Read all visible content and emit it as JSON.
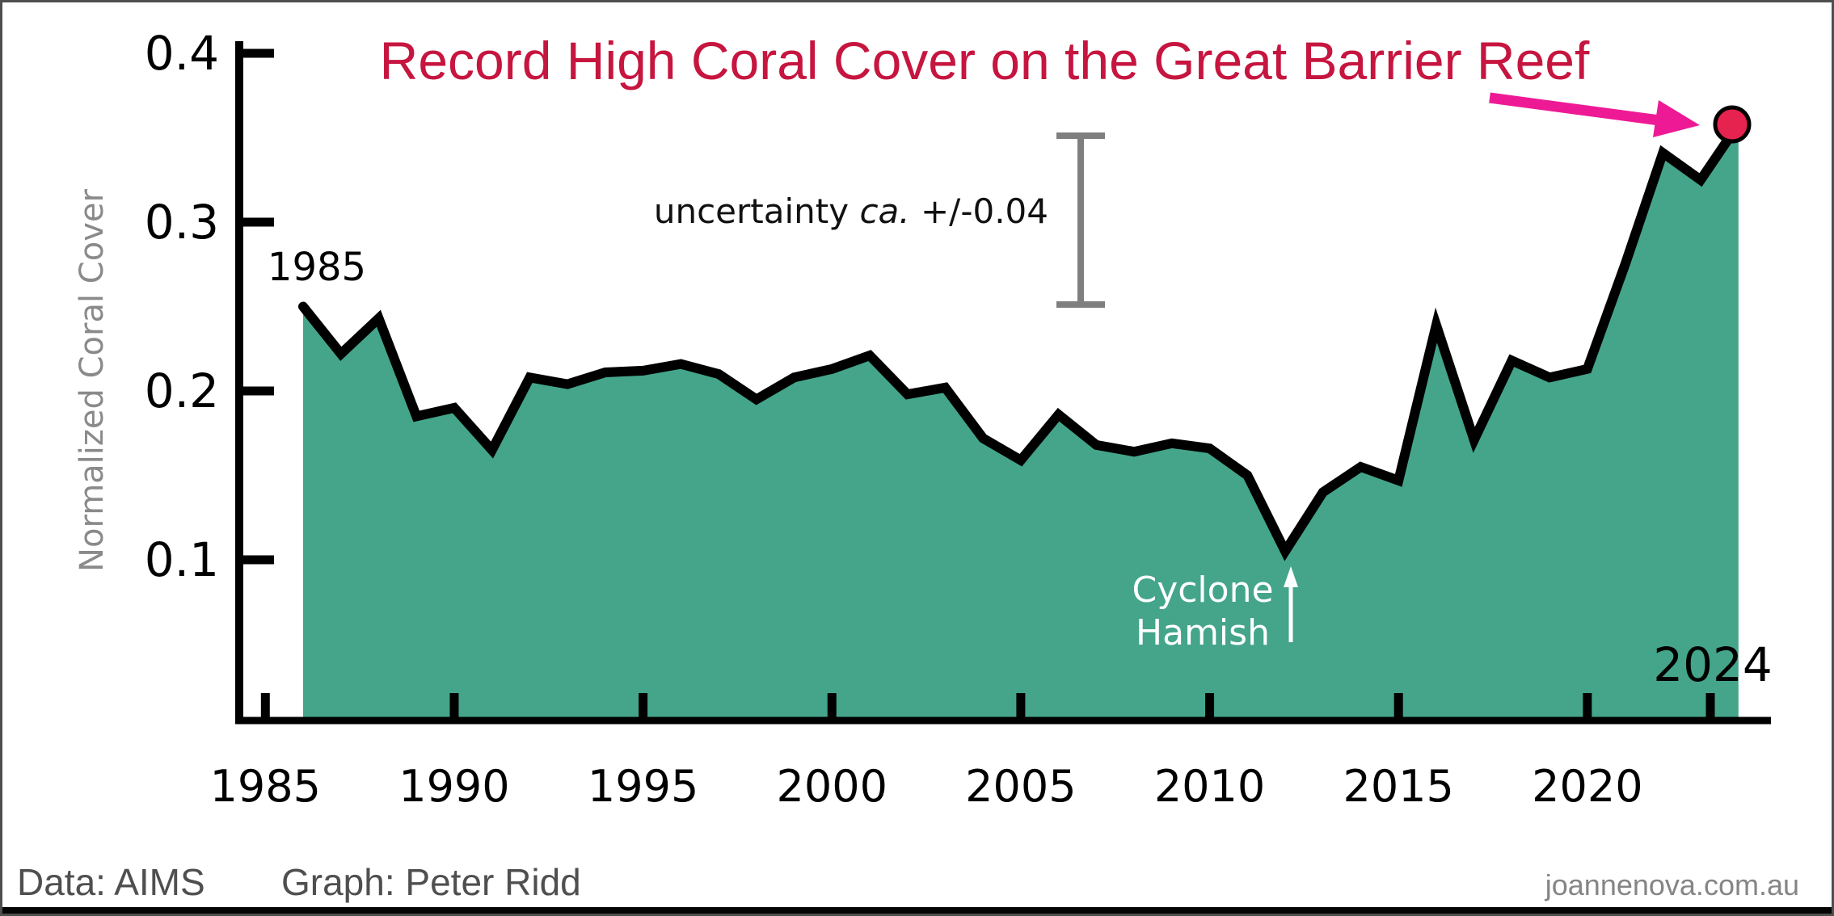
{
  "title": "Record High Coral Cover on the Great Barrier Reef",
  "axes": {
    "ylabel": "Normalized Coral Cover",
    "y_tick_labels": [
      "0.4",
      "0.3",
      "0.2",
      "0.1"
    ],
    "x_tick_labels": [
      "1985",
      "1990",
      "1995",
      "2000",
      "2005",
      "2010",
      "2015",
      "2020"
    ]
  },
  "annotations": {
    "start_year": "1985",
    "end_year": "2024",
    "uncertainty_prefix": "uncertainty ",
    "uncertainty_italic": "ca.",
    "uncertainty_suffix": " +/-0.04",
    "cyclone_line1": "Cyclone",
    "cyclone_line2": "Hamish"
  },
  "footer": {
    "data_credit": "Data: AIMS",
    "graph_credit": "Graph: Peter Ridd",
    "watermark": "joannenova.com.au"
  },
  "colors": {
    "area_fill": "#44A58B",
    "line": "#000000",
    "title_text": "#C6153F",
    "end_dot": "#E6224E",
    "end_dot_outline": "#000000",
    "pointer_arrow": "#EE1A95",
    "y_axis_label_text": "#8A8A8A",
    "error_bar": "#7F7F7F",
    "cyclone_text": "#FFFFFF",
    "footer_text": "#4F4F4F",
    "watermark_text": "#858585"
  },
  "chart_data": {
    "type": "area",
    "title": "Record High Coral Cover on the Great Barrier Reef",
    "xlabel": "",
    "ylabel": "Normalized Coral Cover",
    "x": [
      1986,
      1987,
      1988,
      1989,
      1990,
      1991,
      1992,
      1993,
      1994,
      1995,
      1996,
      1997,
      1998,
      1999,
      2000,
      2001,
      2002,
      2003,
      2004,
      2005,
      2006,
      2007,
      2008,
      2009,
      2010,
      2011,
      2012,
      2013,
      2014,
      2015,
      2016,
      2017,
      2018,
      2019,
      2020,
      2021,
      2022,
      2023,
      2024
    ],
    "values": [
      0.25,
      0.222,
      0.243,
      0.185,
      0.19,
      0.165,
      0.208,
      0.204,
      0.211,
      0.212,
      0.216,
      0.21,
      0.195,
      0.208,
      0.213,
      0.221,
      0.198,
      0.202,
      0.172,
      0.159,
      0.186,
      0.168,
      0.164,
      0.169,
      0.166,
      0.15,
      0.105,
      0.14,
      0.155,
      0.147,
      0.239,
      0.171,
      0.218,
      0.208,
      0.213,
      0.275,
      0.341,
      0.325,
      0.358
    ],
    "x_ticks": [
      1985,
      1990,
      1995,
      2000,
      2005,
      2010,
      2015,
      2020,
      2024
    ],
    "y_ticks": [
      0.4,
      0.3,
      0.2,
      0.1
    ],
    "ylim": [
      0,
      0.4
    ],
    "xlim": [
      1984.2,
      2026.5
    ],
    "grid": false,
    "legend": "none",
    "uncertainty_note": "+/-0.04",
    "min_point": {
      "year": 2012,
      "value": 0.105,
      "label": "Cyclone Hamish"
    },
    "max_point": {
      "year": 2024,
      "value": 0.358,
      "label": "Record High"
    }
  }
}
